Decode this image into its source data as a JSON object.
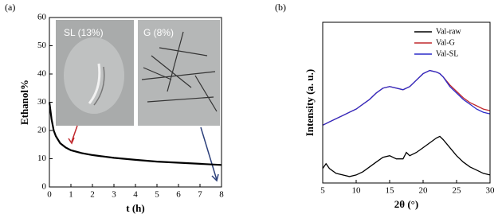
{
  "chart_data": [
    {
      "type": "line",
      "panel_label": "(a)",
      "xlabel": "t (h)",
      "ylabel": "Ethanol%",
      "x": [
        0,
        0.1,
        0.2,
        0.3,
        0.5,
        0.75,
        1,
        1.5,
        2,
        3,
        4,
        5,
        6,
        7,
        8
      ],
      "series": [
        {
          "color": "#000000",
          "values": [
            30,
            24,
            20,
            18,
            15.5,
            14,
            13,
            12,
            11.3,
            10.3,
            9.6,
            9,
            8.6,
            8.2,
            7.8
          ]
        }
      ],
      "xlim": [
        0,
        8
      ],
      "xticks": [
        0,
        1,
        2,
        3,
        4,
        5,
        6,
        7,
        8
      ],
      "ylim": [
        0,
        60
      ],
      "yticks": [
        0,
        10,
        20,
        30,
        40,
        50,
        60
      ],
      "annotations": [
        "SL (13%)",
        "G (8%)"
      ]
    },
    {
      "type": "line",
      "panel_label": "(b)",
      "xlabel": "2θ (°)",
      "ylabel": "Intensity (a. u.)",
      "x": [
        5,
        5.5,
        6,
        7,
        8,
        9,
        10,
        11,
        12,
        13,
        14,
        15,
        16,
        17,
        17.5,
        18,
        19,
        20,
        21,
        22,
        22.5,
        23,
        24,
        25,
        26,
        27,
        28,
        29,
        30
      ],
      "series": [
        {
          "name": "Val-raw",
          "color": "#000000",
          "values": [
            9,
            12,
            9,
            6,
            5,
            4,
            5,
            7,
            10,
            13,
            16,
            17,
            15,
            15,
            19,
            17,
            19,
            22,
            25,
            28,
            29,
            27,
            22,
            17,
            13,
            10,
            8,
            6,
            5
          ]
        },
        {
          "name": "Val-G",
          "color": "#c0282d",
          "values": [
            36,
            37,
            38,
            40,
            42,
            44,
            46,
            49,
            52,
            56,
            59,
            60,
            59,
            58,
            59,
            60,
            64,
            68,
            70,
            69,
            68,
            66,
            61,
            57,
            53,
            50,
            48,
            46,
            45
          ]
        },
        {
          "name": "Val-SL",
          "color": "#2b2bc8",
          "values": [
            36,
            37,
            38,
            40,
            42,
            44,
            46,
            49,
            52,
            56,
            59,
            60,
            59,
            58,
            59,
            60,
            64,
            68,
            70,
            69,
            68,
            66,
            60,
            56,
            52,
            49,
            46,
            44,
            43
          ]
        }
      ],
      "xlim": [
        5,
        30
      ],
      "xticks": [
        5,
        10,
        15,
        20,
        25,
        30
      ],
      "ylim": [
        0,
        100
      ],
      "legend": "upper right"
    }
  ]
}
